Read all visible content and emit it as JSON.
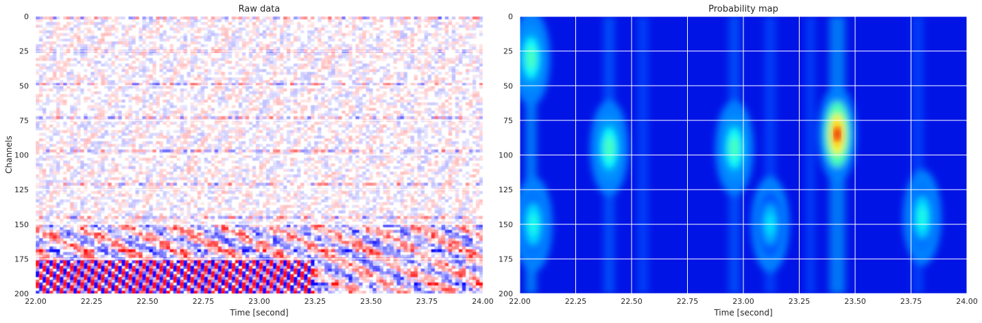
{
  "chart_data": [
    {
      "type": "heatmap",
      "title": "Raw data",
      "xlabel": "Time [second]",
      "ylabel": "Channels",
      "xlim": [
        22.0,
        24.0
      ],
      "ylim": [
        200,
        0
      ],
      "x_ticks": [
        "22.00",
        "22.25",
        "22.50",
        "22.75",
        "23.00",
        "23.25",
        "23.50",
        "23.75",
        "24.00"
      ],
      "y_ticks": [
        "0",
        "25",
        "50",
        "75",
        "100",
        "125",
        "150",
        "175",
        "200"
      ],
      "colormap": "seismic",
      "grid": false,
      "colors": {
        "positive": "#ff0000",
        "negative": "#0000ff",
        "zero": "#ffffff"
      },
      "features": [
        {
          "description": "diagonal moveout bands",
          "channels": [
            150,
            200
          ],
          "time_range": [
            22.0,
            24.0
          ]
        },
        {
          "description": "strong alternating red/blue bands",
          "channels": [
            175,
            200
          ],
          "time_range": [
            22.0,
            23.2
          ]
        }
      ]
    },
    {
      "type": "heatmap",
      "title": "Probability map",
      "xlabel": "Time [second]",
      "ylabel": "",
      "xlim": [
        22.0,
        24.0
      ],
      "ylim": [
        200,
        0
      ],
      "x_ticks": [
        "22.00",
        "22.25",
        "22.50",
        "22.75",
        "23.00",
        "23.25",
        "23.50",
        "23.75",
        "24.00"
      ],
      "y_ticks": [
        "0",
        "25",
        "50",
        "75",
        "100",
        "125",
        "150",
        "175",
        "200"
      ],
      "colormap": "jet",
      "grid": true,
      "hotspots": [
        {
          "time": 22.05,
          "channel": 30,
          "prob": 0.45
        },
        {
          "time": 22.06,
          "channel": 150,
          "prob": 0.4
        },
        {
          "time": 22.4,
          "channel": 95,
          "prob": 0.45
        },
        {
          "time": 22.96,
          "channel": 95,
          "prob": 0.45
        },
        {
          "time": 23.12,
          "channel": 150,
          "prob": 0.35
        },
        {
          "time": 23.42,
          "channel": 85,
          "prob": 0.75
        },
        {
          "time": 23.8,
          "channel": 145,
          "prob": 0.4
        }
      ]
    }
  ]
}
